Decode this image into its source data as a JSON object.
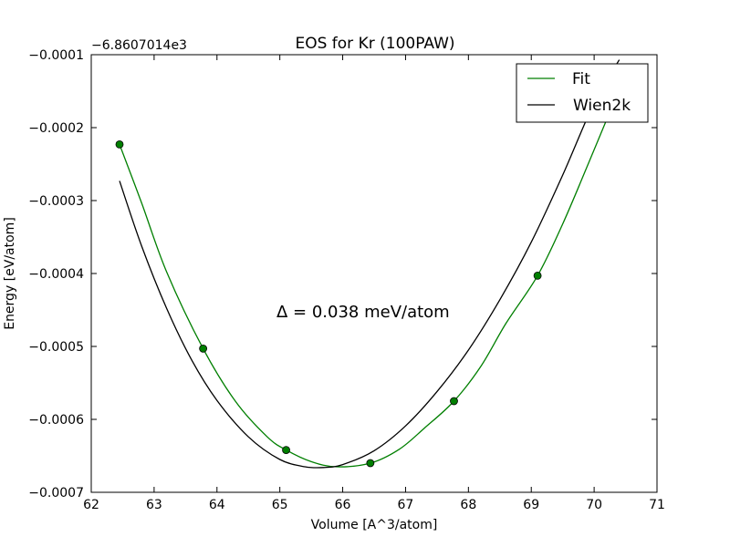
{
  "chart_data": {
    "type": "line",
    "title": "EOS for Kr (100PAW)",
    "xlabel": "Volume [A^3/atom]",
    "ylabel": "Energy [eV/atom]",
    "y_offset_label": "−6.8607014e3",
    "xlim": [
      62,
      71
    ],
    "ylim": [
      -0.0007,
      -0.0001
    ],
    "xticks": [
      62,
      63,
      64,
      65,
      66,
      67,
      68,
      69,
      70,
      71
    ],
    "xtick_labels": [
      "62",
      "63",
      "64",
      "65",
      "66",
      "67",
      "68",
      "69",
      "70",
      "71"
    ],
    "yticks": [
      -0.0007,
      -0.0006,
      -0.0005,
      -0.0004,
      -0.0003,
      -0.0002,
      -0.0001
    ],
    "ytick_labels": [
      "−0.0007",
      "−0.0006",
      "−0.0005",
      "−0.0004",
      "−0.0003",
      "−0.0002",
      "−0.0001"
    ],
    "annotation": "Δ = 0.038 meV/atom",
    "legend_position": "top-right",
    "grid": false,
    "points": {
      "color": "#007f00",
      "x": [
        62.45,
        63.78,
        65.1,
        66.44,
        67.77,
        69.1
      ],
      "y": [
        -0.000223,
        -0.000503,
        -0.000642,
        -0.00066,
        -0.000575,
        -0.000403
      ]
    },
    "series": [
      {
        "name": "Fit",
        "color": "#007f00",
        "x": [
          62.45,
          62.8,
          63.2,
          63.78,
          64.3,
          64.8,
          65.1,
          65.5,
          65.9,
          66.44,
          66.9,
          67.3,
          67.77,
          68.2,
          68.6,
          69.1,
          69.5,
          69.9,
          70.3
        ],
        "y": [
          -0.000223,
          -0.000303,
          -0.000398,
          -0.000503,
          -0.000576,
          -0.000624,
          -0.000642,
          -0.000658,
          -0.000665,
          -0.00066,
          -0.000641,
          -0.000612,
          -0.000575,
          -0.000527,
          -0.000468,
          -0.000403,
          -0.000332,
          -0.000251,
          -0.000168
        ]
      },
      {
        "name": "Wien2k",
        "color": "#000000",
        "x": [
          62.45,
          62.8,
          63.2,
          63.6,
          64.0,
          64.5,
          65.0,
          65.4,
          65.7,
          66.0,
          66.5,
          67.0,
          67.5,
          68.0,
          68.5,
          69.0,
          69.5,
          70.0,
          70.4
        ],
        "y": [
          -0.000273,
          -0.000362,
          -0.000448,
          -0.000519,
          -0.000574,
          -0.000624,
          -0.000655,
          -0.000665,
          -0.000666,
          -0.000662,
          -0.000643,
          -0.000609,
          -0.000562,
          -0.000505,
          -0.000436,
          -0.000357,
          -0.000265,
          -0.000166,
          -0.000107
        ]
      }
    ]
  }
}
